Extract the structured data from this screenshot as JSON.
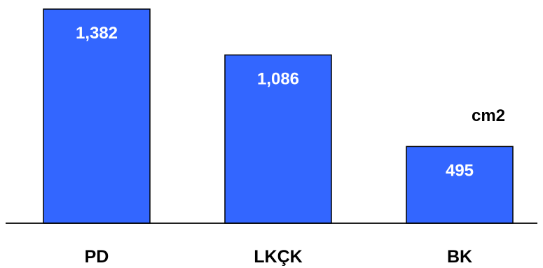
{
  "chart_data": {
    "type": "bar",
    "categories": [
      "PD",
      "LKÇK",
      "BK"
    ],
    "values": [
      1382,
      1086,
      495
    ],
    "value_labels": [
      "1,382",
      "1,086",
      "495"
    ],
    "unit": "cm2",
    "title": "",
    "xlabel": "",
    "ylabel": "",
    "ylim": [
      0,
      1382
    ],
    "grid": false,
    "bar_color": "#3366ff"
  }
}
